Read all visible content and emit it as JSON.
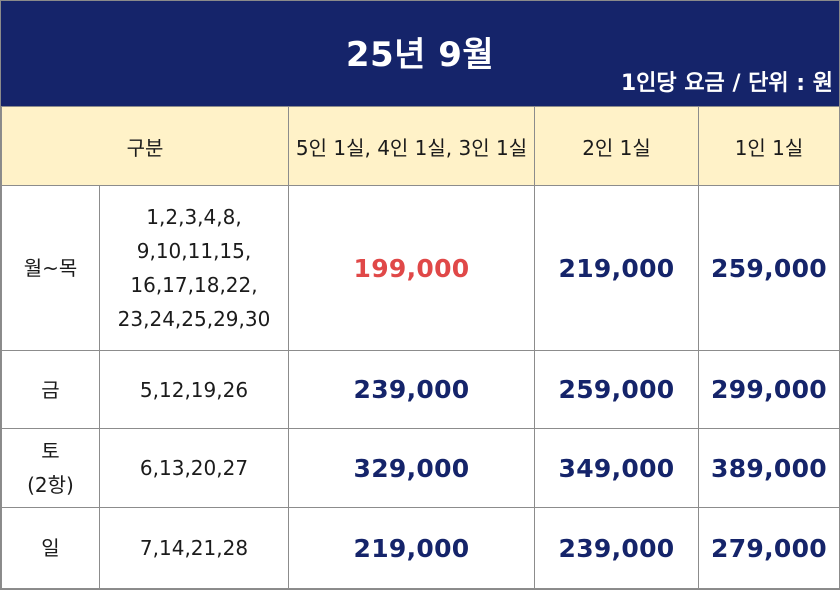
{
  "header": {
    "title": "25년 9월",
    "unit_note": "1인당 요금 / 단위 : 원",
    "bg_color": "#15246a"
  },
  "table": {
    "columns": [
      "구분",
      "5인 1실, 4인 1실, 3인 1실",
      "2인 1실",
      "1인 1실"
    ],
    "rows": [
      {
        "day": [
          "월~목"
        ],
        "dates": [
          "1,2,3,4,8,",
          "9,10,11,15,",
          "16,17,18,22,",
          "23,24,25,29,30"
        ],
        "prices": [
          "199,000",
          "219,000",
          "259,000"
        ]
      },
      {
        "day": [
          "금"
        ],
        "dates": [
          "5,12,19,26"
        ],
        "prices": [
          "239,000",
          "259,000",
          "299,000"
        ]
      },
      {
        "day": [
          "토",
          "(2항)"
        ],
        "dates": [
          "6,13,20,27"
        ],
        "prices": [
          "329,000",
          "349,000",
          "389,000"
        ]
      },
      {
        "day": [
          "일"
        ],
        "dates": [
          "7,14,21,28"
        ],
        "prices": [
          "219,000",
          "239,000",
          "279,000"
        ]
      }
    ]
  },
  "colors": {
    "header_row_bg": "#fff2c8",
    "price_text": "#15246a",
    "highlight_price": "#e04848"
  }
}
